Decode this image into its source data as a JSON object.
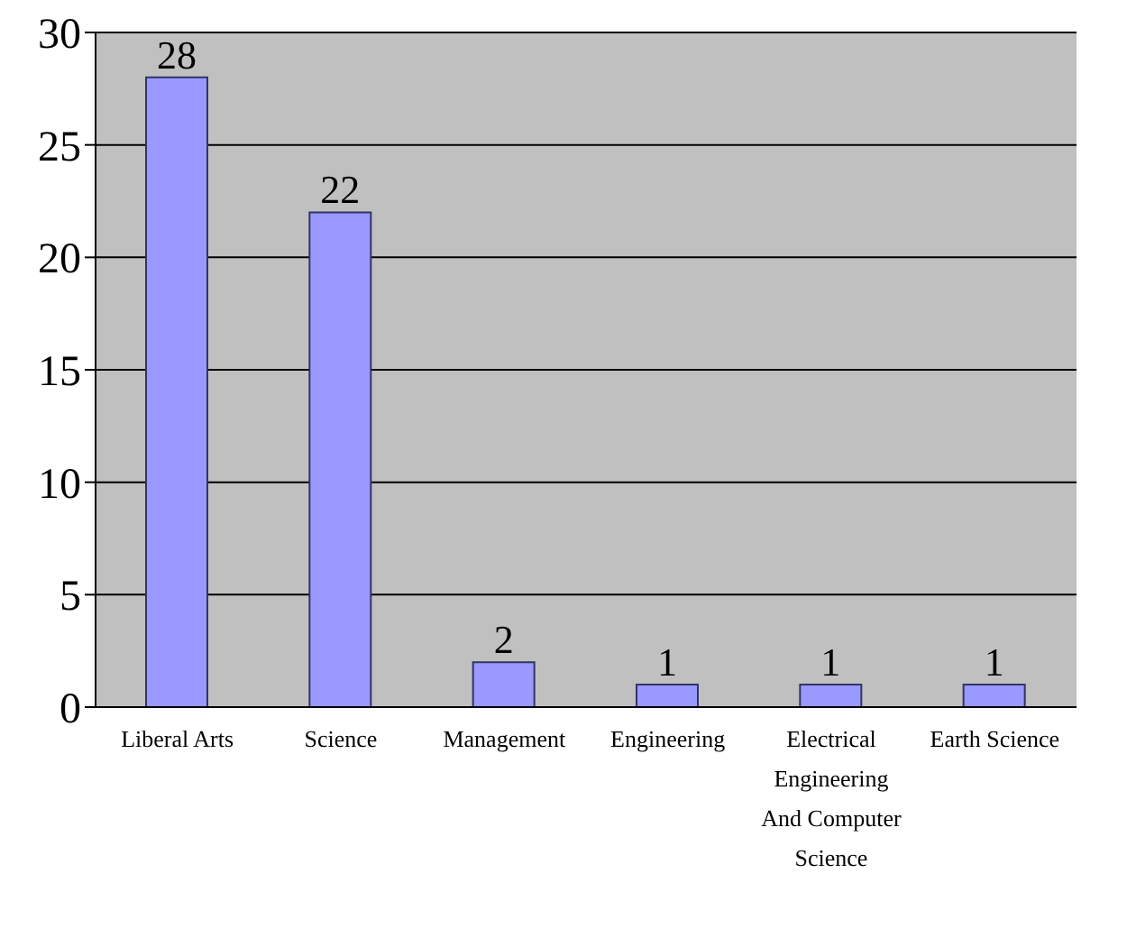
{
  "chart_data": {
    "type": "bar",
    "categories": [
      "Liberal Arts",
      "Science",
      "Management",
      "Engineering",
      "Electrical Engineering And Computer Science",
      "Earth Science"
    ],
    "values": [
      28,
      22,
      2,
      1,
      1,
      1
    ],
    "color": "#9999ff",
    "ylim": [
      0,
      30
    ],
    "yticks": [
      0,
      5,
      10,
      15,
      20,
      25,
      30
    ],
    "grid": "y",
    "data_labels": true
  }
}
